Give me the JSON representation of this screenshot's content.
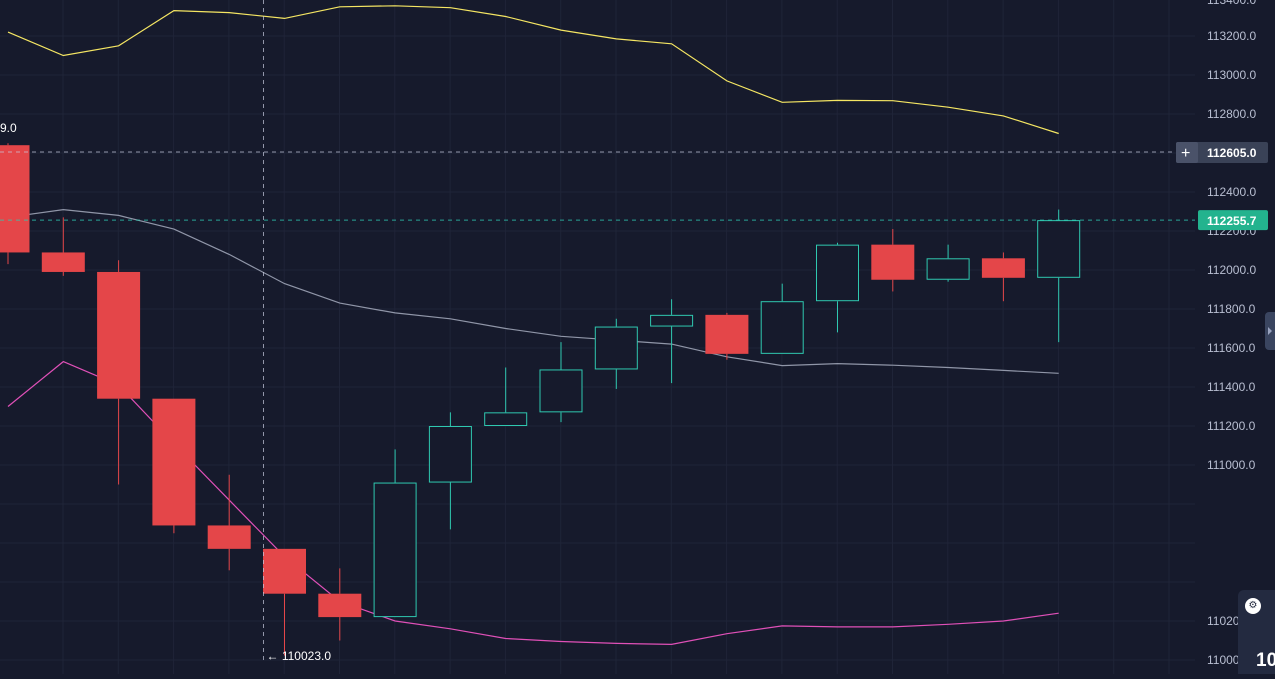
{
  "chart_data": {
    "type": "candlestick",
    "ylim": [
      109920,
      113350
    ],
    "y_ticks": [
      "111000.0",
      "111200.0",
      "111400.0",
      "111600.0",
      "111800.0",
      "112000.0",
      "112200.0",
      "112400.0",
      "112800.0",
      "113000.0",
      "113200.0"
    ],
    "y_ticks_partial": [
      "11020",
      "11000"
    ],
    "candles": [
      {
        "open": 112640,
        "high": 112650,
        "low": 112030,
        "close": 112090
      },
      {
        "open": 112090,
        "high": 112270,
        "low": 111970,
        "close": 111990
      },
      {
        "open": 111990,
        "high": 112050,
        "low": 110900,
        "close": 111340
      },
      {
        "open": 111340,
        "high": 111340,
        "low": 110650,
        "close": 110690
      },
      {
        "open": 110690,
        "high": 110950,
        "low": 110460,
        "close": 110570
      },
      {
        "open": 110570,
        "high": 110570,
        "low": 110023,
        "close": 110340
      },
      {
        "open": 110340,
        "high": 110470,
        "low": 110100,
        "close": 110220
      },
      {
        "open": 110220,
        "high": 111080,
        "low": 110220,
        "close": 110910
      },
      {
        "open": 110910,
        "high": 111270,
        "low": 110670,
        "close": 111200
      },
      {
        "open": 111200,
        "high": 111500,
        "low": 111200,
        "close": 111270
      },
      {
        "open": 111270,
        "high": 111630,
        "low": 111220,
        "close": 111490
      },
      {
        "open": 111490,
        "high": 111750,
        "low": 111390,
        "close": 111710
      },
      {
        "open": 111710,
        "high": 111850,
        "low": 111420,
        "close": 111770
      },
      {
        "open": 111770,
        "high": 111780,
        "low": 111540,
        "close": 111570
      },
      {
        "open": 111570,
        "high": 111930,
        "low": 111570,
        "close": 111840
      },
      {
        "open": 111840,
        "high": 112140,
        "low": 111680,
        "close": 112130
      },
      {
        "open": 112130,
        "high": 112210,
        "low": 111890,
        "close": 111950
      },
      {
        "open": 111950,
        "high": 112130,
        "low": 111940,
        "close": 112060
      },
      {
        "open": 112060,
        "high": 112090,
        "low": 111840,
        "close": 111960
      },
      {
        "open": 111960,
        "high": 112310,
        "low": 111630,
        "close": 112255.7
      }
    ],
    "series": [
      {
        "role": "upper-band",
        "color": "#f5e663",
        "values": [
          113220,
          113100,
          113150,
          113330,
          113320,
          113290,
          113350,
          113355,
          113345,
          113300,
          113230,
          113185,
          113160,
          112970,
          112860,
          112870,
          112868,
          112835,
          112790,
          112700
        ]
      },
      {
        "role": "middle-band",
        "color": "#9096a8",
        "values": [
          112270,
          112310,
          112280,
          112210,
          112080,
          111930,
          111830,
          111780,
          111750,
          111700,
          111660,
          111640,
          111620,
          111555,
          111510,
          111520,
          111512,
          111500,
          111485,
          111470
        ]
      },
      {
        "role": "lower-band",
        "color": "#e050b8",
        "values": [
          111300,
          111530,
          111410,
          111110,
          110820,
          110530,
          110300,
          110200,
          110160,
          110110,
          110095,
          110085,
          110080,
          110135,
          110175,
          110170,
          110170,
          110183,
          110200,
          110240
        ]
      }
    ],
    "first_candle_label": "9.0",
    "low_label": "← 110023.0",
    "crosshair_price": 112605,
    "crosshair_label": "112605.0",
    "last_price": 112255.7,
    "last_price_label": "112255.7",
    "grid": true,
    "colors": {
      "up": "#2fc8b0",
      "down": "#e44649",
      "background": "#161a2c",
      "grid": "#1f2438"
    }
  },
  "ui": {
    "widget_value": "10",
    "widget_icon": "chart-settings-icon"
  }
}
